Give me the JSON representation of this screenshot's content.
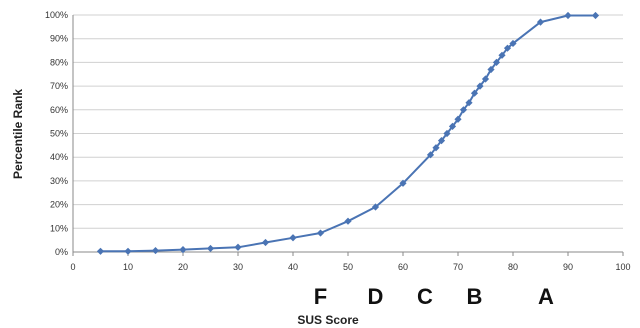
{
  "chart_data": {
    "type": "line",
    "title": "",
    "xlabel": "SUS Score",
    "ylabel": "Percentile Rank",
    "xlim": [
      0,
      100
    ],
    "ylim": [
      0,
      100
    ],
    "x_ticks": [
      "0",
      "10",
      "20",
      "30",
      "40",
      "50",
      "60",
      "70",
      "80",
      "90",
      "100"
    ],
    "y_ticks": [
      "0%",
      "10%",
      "20%",
      "30%",
      "40%",
      "50%",
      "60%",
      "70%",
      "80%",
      "90%",
      "100%"
    ],
    "grid": "horizontal",
    "series": [
      {
        "color": "#4a74b4",
        "marker": "diamond",
        "points": [
          [
            5,
            0.3
          ],
          [
            10,
            0.3
          ],
          [
            15,
            0.6
          ],
          [
            20,
            1
          ],
          [
            25,
            1.5
          ],
          [
            30,
            2
          ],
          [
            35,
            4
          ],
          [
            40,
            6
          ],
          [
            45,
            8
          ],
          [
            50,
            13
          ],
          [
            55,
            19
          ],
          [
            60,
            29
          ],
          [
            65,
            41
          ],
          [
            66,
            44
          ],
          [
            67,
            47
          ],
          [
            68,
            50
          ],
          [
            69,
            53
          ],
          [
            70,
            56
          ],
          [
            71,
            60
          ],
          [
            72,
            63
          ],
          [
            73,
            67
          ],
          [
            74,
            70
          ],
          [
            75,
            73
          ],
          [
            76,
            77
          ],
          [
            77,
            80
          ],
          [
            78,
            83
          ],
          [
            79,
            86
          ],
          [
            80,
            88
          ],
          [
            85,
            97
          ],
          [
            90,
            99.8
          ],
          [
            95,
            99.8
          ]
        ]
      }
    ],
    "grade_labels": [
      {
        "label": "F",
        "x": 45
      },
      {
        "label": "D",
        "x": 55
      },
      {
        "label": "C",
        "x": 64
      },
      {
        "label": "B",
        "x": 73
      },
      {
        "label": "A",
        "x": 86
      }
    ]
  }
}
